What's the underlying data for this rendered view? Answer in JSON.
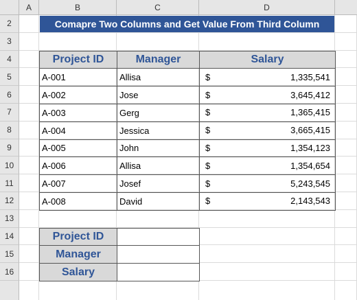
{
  "columns": [
    "A",
    "B",
    "C",
    "D"
  ],
  "row_numbers": [
    2,
    3,
    4,
    5,
    6,
    7,
    8,
    9,
    10,
    11,
    12,
    13,
    14,
    15,
    16
  ],
  "title": "Comapre Two Columns and Get Value From Third Column",
  "table": {
    "headers": [
      "Project ID",
      "Manager",
      "Salary"
    ],
    "rows": [
      [
        "A-001",
        "Allisa",
        "$",
        "1,335,541"
      ],
      [
        "A-002",
        "Jose",
        "$",
        "3,645,412"
      ],
      [
        "A-003",
        "Gerg",
        "$",
        "1,365,415"
      ],
      [
        "A-004",
        "Jessica",
        "$",
        "3,665,415"
      ],
      [
        "A-005",
        "John",
        "$",
        "1,354,123"
      ],
      [
        "A-006",
        "Allisa",
        "$",
        "1,354,654"
      ],
      [
        "A-007",
        "Josef",
        "$",
        "5,243,545"
      ],
      [
        "A-008",
        "David",
        "$",
        "2,143,543"
      ]
    ]
  },
  "lookup": {
    "labels": [
      "Project ID",
      "Manager",
      "Salary"
    ]
  }
}
